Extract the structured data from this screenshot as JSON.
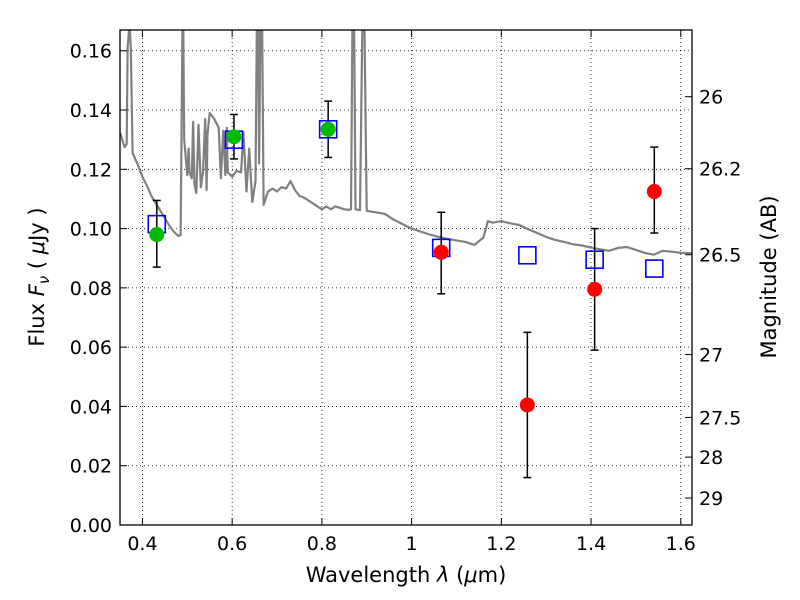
{
  "chart_data": {
    "type": "scatter",
    "title": "",
    "xlabel_parts": [
      "Wavelength ",
      "λ",
      " (",
      "μ",
      "m)"
    ],
    "ylabel_parts": [
      "Flux ",
      "F",
      "ν",
      " ( ",
      "μ",
      "Jy )"
    ],
    "y2label": "Magnitude (AB)",
    "xlim": [
      0.35,
      1.625
    ],
    "ylim": [
      0.0,
      0.167
    ],
    "x_ticks": [
      0.4,
      0.6,
      0.8,
      1.0,
      1.2,
      1.4,
      1.6
    ],
    "x_tick_labels": [
      "0.4",
      "0.6",
      "0.8",
      "1",
      "1.2",
      "1.4",
      "1.6"
    ],
    "y_ticks": [
      0.0,
      0.02,
      0.04,
      0.06,
      0.08,
      0.1,
      0.12,
      0.14,
      0.16
    ],
    "y_tick_labels": [
      "0.00",
      "0.02",
      "0.04",
      "0.06",
      "0.08",
      "0.10",
      "0.12",
      "0.14",
      "0.16"
    ],
    "y2_ticks": [
      {
        "label": "26",
        "flux": 0.1445
      },
      {
        "label": "26.2",
        "flux": 0.1202
      },
      {
        "label": "26.5",
        "flux": 0.0912
      },
      {
        "label": "27",
        "flux": 0.0575
      },
      {
        "label": "27.5",
        "flux": 0.0363
      },
      {
        "label": "28",
        "flux": 0.0229
      },
      {
        "label": "29",
        "flux": 0.0091
      }
    ],
    "grid": true,
    "model_sed": {
      "color": "#808080",
      "points": [
        [
          0.35,
          0.1325
        ],
        [
          0.36,
          0.1275
        ],
        [
          0.365,
          0.1285
        ],
        [
          0.367,
          0.161
        ],
        [
          0.37,
          0.167
        ],
        [
          0.372,
          0.167
        ],
        [
          0.374,
          0.161
        ],
        [
          0.378,
          0.1255
        ],
        [
          0.39,
          0.1215
        ],
        [
          0.4,
          0.1175
        ],
        [
          0.41,
          0.1145
        ],
        [
          0.42,
          0.111
        ],
        [
          0.43,
          0.1085
        ],
        [
          0.44,
          0.106
        ],
        [
          0.45,
          0.1035
        ],
        [
          0.46,
          0.101
        ],
        [
          0.47,
          0.099
        ],
        [
          0.48,
          0.0975
        ],
        [
          0.485,
          0.0978
        ],
        [
          0.487,
          0.13
        ],
        [
          0.489,
          0.167
        ],
        [
          0.491,
          0.167
        ],
        [
          0.493,
          0.13
        ],
        [
          0.5,
          0.118
        ],
        [
          0.503,
          0.127
        ],
        [
          0.505,
          0.119
        ],
        [
          0.51,
          0.117
        ],
        [
          0.513,
          0.136
        ],
        [
          0.516,
          0.115
        ],
        [
          0.52,
          0.112
        ],
        [
          0.525,
          0.135
        ],
        [
          0.53,
          0.114
        ],
        [
          0.535,
          0.119
        ],
        [
          0.54,
          0.137
        ],
        [
          0.543,
          0.113
        ],
        [
          0.545,
          0.132
        ],
        [
          0.55,
          0.139
        ],
        [
          0.56,
          0.137
        ],
        [
          0.57,
          0.134
        ],
        [
          0.575,
          0.117
        ],
        [
          0.58,
          0.133
        ],
        [
          0.585,
          0.118
        ],
        [
          0.588,
          0.134
        ],
        [
          0.59,
          0.119
        ],
        [
          0.6,
          0.1175
        ],
        [
          0.61,
          0.1195
        ],
        [
          0.62,
          0.119
        ],
        [
          0.625,
          0.1325
        ],
        [
          0.632,
          0.1125
        ],
        [
          0.638,
          0.127
        ],
        [
          0.645,
          0.109
        ],
        [
          0.652,
          0.116
        ],
        [
          0.655,
          0.167
        ],
        [
          0.658,
          0.167
        ],
        [
          0.66,
          0.122
        ],
        [
          0.663,
          0.167
        ],
        [
          0.667,
          0.167
        ],
        [
          0.67,
          0.108
        ],
        [
          0.68,
          0.1125
        ],
        [
          0.69,
          0.1135
        ],
        [
          0.7,
          0.1125
        ],
        [
          0.71,
          0.114
        ],
        [
          0.72,
          0.1135
        ],
        [
          0.73,
          0.116
        ],
        [
          0.74,
          0.113
        ],
        [
          0.75,
          0.111
        ],
        [
          0.76,
          0.1105
        ],
        [
          0.77,
          0.1095
        ],
        [
          0.78,
          0.1085
        ],
        [
          0.79,
          0.1075
        ],
        [
          0.8,
          0.1065
        ],
        [
          0.81,
          0.1075
        ],
        [
          0.82,
          0.1065
        ],
        [
          0.83,
          0.1075
        ],
        [
          0.84,
          0.107
        ],
        [
          0.85,
          0.1065
        ],
        [
          0.86,
          0.1063
        ],
        [
          0.865,
          0.1065
        ],
        [
          0.868,
          0.167
        ],
        [
          0.872,
          0.167
        ],
        [
          0.875,
          0.1065
        ],
        [
          0.885,
          0.1062
        ],
        [
          0.89,
          0.167
        ],
        [
          0.895,
          0.167
        ],
        [
          0.9,
          0.106
        ],
        [
          0.92,
          0.1055
        ],
        [
          0.94,
          0.105
        ],
        [
          0.96,
          0.103
        ],
        [
          0.98,
          0.1015
        ],
        [
          1.0,
          0.1
        ],
        [
          1.02,
          0.099
        ],
        [
          1.04,
          0.098
        ],
        [
          1.06,
          0.0972
        ],
        [
          1.08,
          0.0965
        ],
        [
          1.1,
          0.096
        ],
        [
          1.12,
          0.0955
        ],
        [
          1.14,
          0.0945
        ],
        [
          1.16,
          0.097
        ],
        [
          1.17,
          0.1025
        ],
        [
          1.18,
          0.102
        ],
        [
          1.2,
          0.1025
        ],
        [
          1.22,
          0.1018
        ],
        [
          1.24,
          0.1012
        ],
        [
          1.26,
          0.0998
        ],
        [
          1.28,
          0.0985
        ],
        [
          1.3,
          0.0972
        ],
        [
          1.32,
          0.0962
        ],
        [
          1.34,
          0.0955
        ],
        [
          1.36,
          0.0947
        ],
        [
          1.38,
          0.0943
        ],
        [
          1.4,
          0.0936
        ],
        [
          1.42,
          0.093
        ],
        [
          1.44,
          0.0925
        ],
        [
          1.46,
          0.0935
        ],
        [
          1.48,
          0.0938
        ],
        [
          1.5,
          0.0928
        ],
        [
          1.52,
          0.0918
        ],
        [
          1.54,
          0.0912
        ],
        [
          1.56,
          0.0925
        ],
        [
          1.58,
          0.0922
        ],
        [
          1.6,
          0.0918
        ],
        [
          1.625,
          0.0917
        ]
      ]
    },
    "series": [
      {
        "marker": "square",
        "color": "#0000ff",
        "points": [
          {
            "x": 0.432,
            "y": 0.1015
          },
          {
            "x": 0.604,
            "y": 0.13
          },
          {
            "x": 0.814,
            "y": 0.1335
          },
          {
            "x": 1.066,
            "y": 0.0935
          },
          {
            "x": 1.258,
            "y": 0.091
          },
          {
            "x": 1.408,
            "y": 0.0895
          },
          {
            "x": 1.541,
            "y": 0.0865
          }
        ]
      },
      {
        "marker": "circle",
        "color": "#00bb00",
        "points": [
          {
            "x": 0.432,
            "y": 0.098,
            "yerr_low": 0.087,
            "yerr_high": 0.1095
          },
          {
            "x": 0.604,
            "y": 0.131,
            "yerr_low": 0.1235,
            "yerr_high": 0.1385
          },
          {
            "x": 0.814,
            "y": 0.1335,
            "yerr_low": 0.124,
            "yerr_high": 0.143
          }
        ]
      },
      {
        "marker": "circle",
        "color": "#ff0000",
        "points": [
          {
            "x": 1.066,
            "y": 0.092,
            "yerr_low": 0.078,
            "yerr_high": 0.1055
          },
          {
            "x": 1.258,
            "y": 0.0405,
            "yerr_low": 0.016,
            "yerr_high": 0.065
          },
          {
            "x": 1.408,
            "y": 0.0795,
            "yerr_low": 0.059,
            "yerr_high": 0.1
          },
          {
            "x": 1.541,
            "y": 0.1125,
            "yerr_low": 0.0985,
            "yerr_high": 0.1275
          }
        ]
      }
    ]
  }
}
